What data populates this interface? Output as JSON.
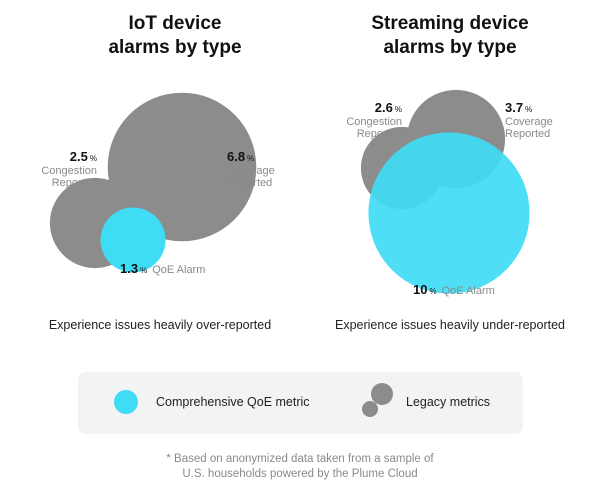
{
  "colors": {
    "legacy": "#8c8c8c",
    "qoe": "#3fdcf5",
    "label_gray": "#8a8a8a"
  },
  "chart_data": [
    {
      "type": "bubble",
      "title": [
        "IoT device",
        "alarms by type"
      ],
      "subtitle": "Experience issues heavily over-reported",
      "series": [
        {
          "name": [
            "Congestion",
            "Reported"
          ],
          "value": 2.5,
          "category": "legacy"
        },
        {
          "name": [
            "Coverage",
            "Reported"
          ],
          "value": 6.8,
          "category": "legacy"
        },
        {
          "name": [
            "QoE Alarm"
          ],
          "value": 1.3,
          "category": "qoe"
        }
      ]
    },
    {
      "type": "bubble",
      "title": [
        "Streaming device",
        "alarms by type"
      ],
      "subtitle": "Experience issues heavily under-reported",
      "series": [
        {
          "name": [
            "Congestion",
            "Reported"
          ],
          "value": 2.6,
          "category": "legacy"
        },
        {
          "name": [
            "Coverage",
            "Reported"
          ],
          "value": 3.7,
          "category": "legacy"
        },
        {
          "name": [
            "QoE Alarm"
          ],
          "value": 10,
          "category": "qoe"
        }
      ]
    }
  ],
  "legend": {
    "qoe_label": "Comprehensive QoE metric",
    "legacy_label": "Legacy metrics"
  },
  "unit": "%",
  "footnote": [
    "* Based on anonymized data taken from a sample of",
    "U.S. households powered by the Plume Cloud"
  ]
}
